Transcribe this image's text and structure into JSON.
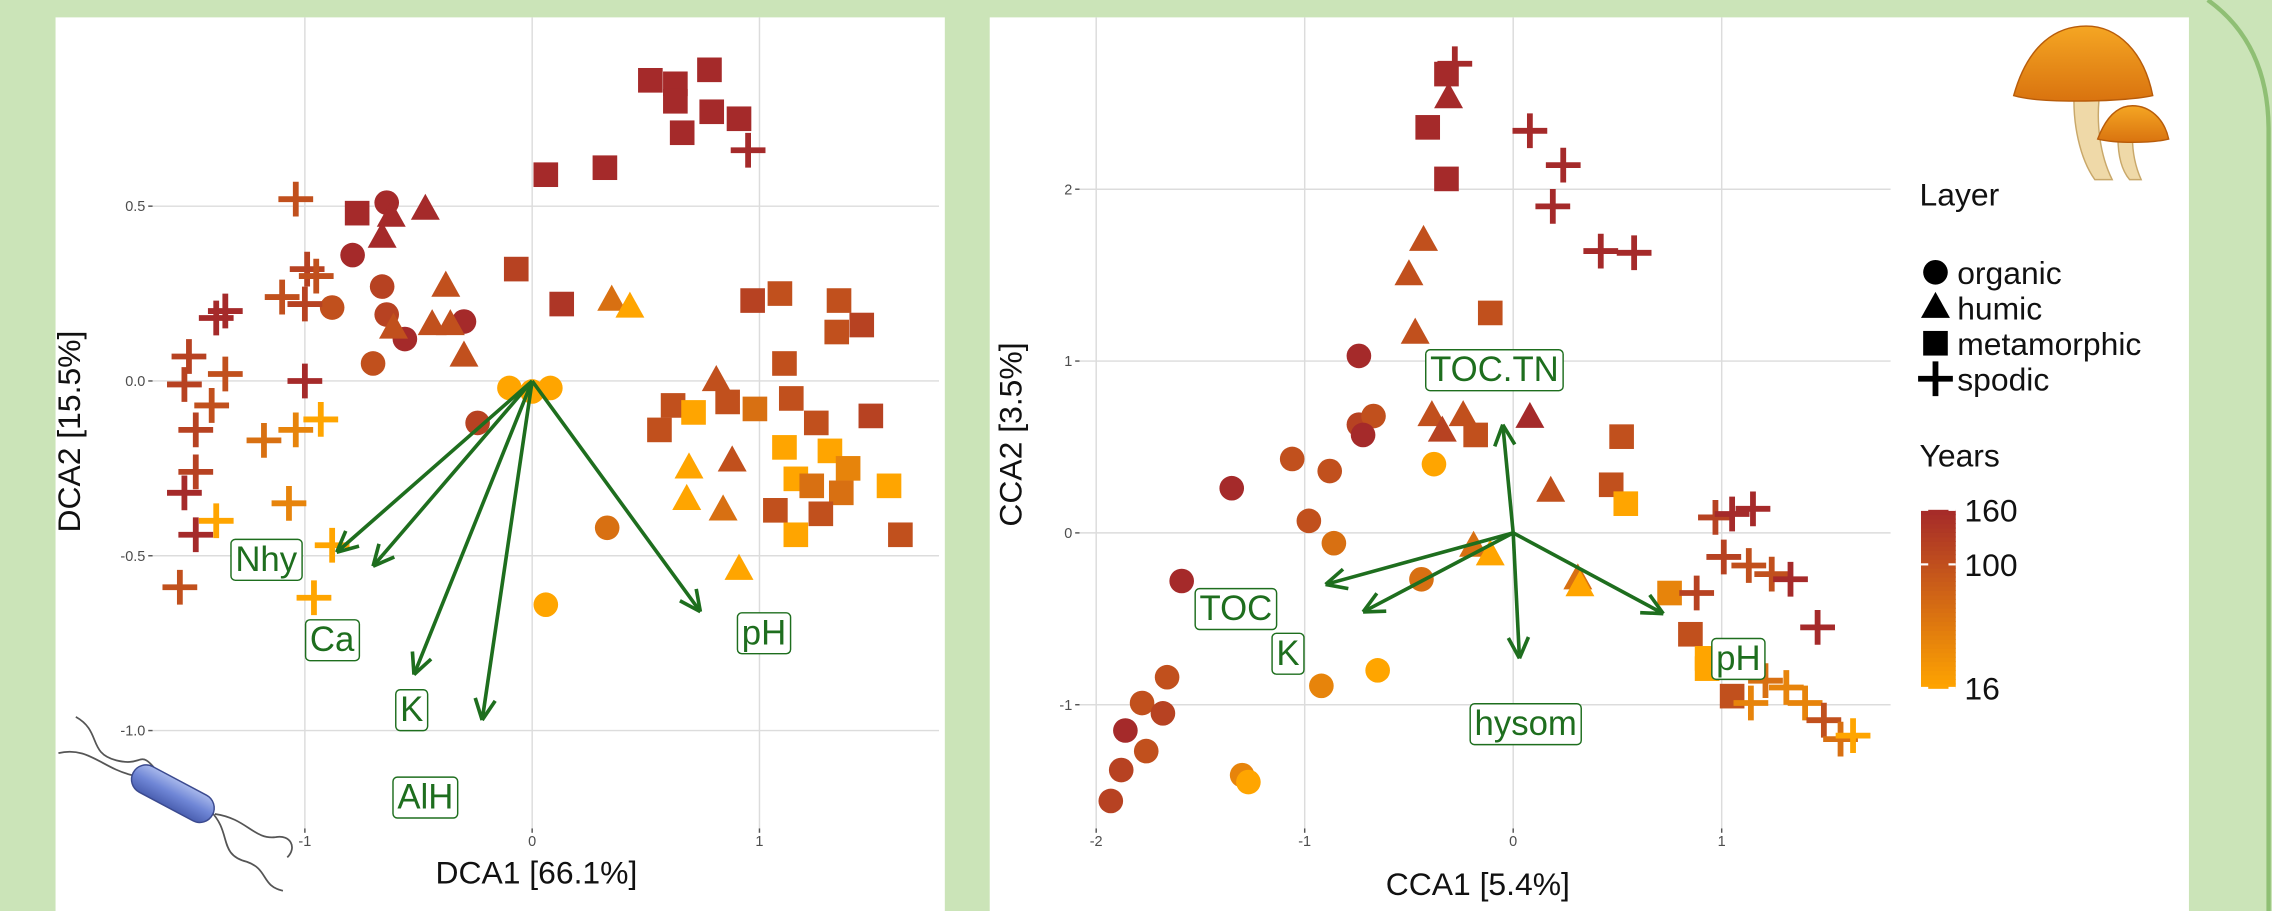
{
  "chart_data": [
    {
      "type": "scatter",
      "xlabel": "DCA1   [66.1%]",
      "ylabel": "DCA2   [15.5%]",
      "xlim": [
        -1.67,
        1.79
      ],
      "ylim": [
        -1.28,
        1.04
      ],
      "xticks": [
        -1,
        0,
        1
      ],
      "yticks": [
        {
          "value": -1,
          "label": "-1.0"
        },
        -0.5,
        {
          "value": 0,
          "label": "0.0"
        },
        0.5
      ],
      "grid": true,
      "arrow_color": "#1e6e1e",
      "series": [
        {
          "name": "organic",
          "shape": "circle",
          "x": [
            -0.64,
            -0.79,
            -0.66,
            -0.64,
            -0.56,
            -0.3,
            -0.7,
            -0.88,
            -0.24,
            -0.1,
            0.0,
            0.08,
            0.33,
            0.06
          ],
          "y": [
            0.51,
            0.36,
            0.27,
            0.19,
            0.12,
            0.17,
            0.05,
            0.21,
            -0.12,
            -0.02,
            -0.03,
            -0.02,
            -0.42,
            -0.64
          ],
          "years": [
            160,
            160,
            120,
            120,
            160,
            160,
            100,
            100,
            120,
            16,
            16,
            16,
            60,
            16
          ]
        },
        {
          "name": "humic",
          "shape": "triangle",
          "x": [
            -0.47,
            -0.62,
            -0.66,
            -0.38,
            -0.44,
            -0.61,
            -0.36,
            -0.3,
            0.35,
            0.43,
            0.81,
            0.69,
            0.68,
            0.84,
            0.91,
            0.88
          ],
          "y": [
            0.49,
            0.47,
            0.41,
            0.27,
            0.16,
            0.15,
            0.16,
            0.07,
            0.23,
            0.21,
            0.0,
            -0.25,
            -0.34,
            -0.37,
            -0.54,
            -0.23
          ],
          "years": [
            160,
            160,
            160,
            100,
            100,
            100,
            100,
            100,
            60,
            16,
            100,
            16,
            16,
            60,
            16,
            100
          ]
        },
        {
          "name": "metamorphic",
          "shape": "square",
          "x": [
            0.52,
            0.63,
            0.78,
            0.63,
            0.79,
            0.91,
            0.66,
            0.06,
            0.32,
            -0.77,
            -0.07,
            0.13,
            0.97,
            1.09,
            1.35,
            1.45,
            1.34,
            1.11,
            0.62,
            0.56,
            0.71,
            0.86,
            0.98,
            1.14,
            1.49,
            1.25,
            1.11,
            1.31,
            1.39,
            1.16,
            1.23,
            1.36,
            1.57,
            1.07,
            1.27,
            1.16,
            1.62
          ],
          "y": [
            0.86,
            0.85,
            0.89,
            0.8,
            0.77,
            0.75,
            0.71,
            0.59,
            0.61,
            0.48,
            0.32,
            0.22,
            0.23,
            0.25,
            0.23,
            0.16,
            0.14,
            0.05,
            -0.07,
            -0.14,
            -0.09,
            -0.06,
            -0.08,
            -0.05,
            -0.1,
            -0.12,
            -0.19,
            -0.2,
            -0.25,
            -0.28,
            -0.3,
            -0.32,
            -0.3,
            -0.37,
            -0.38,
            -0.44,
            -0.44
          ],
          "years": [
            160,
            160,
            160,
            160,
            160,
            160,
            160,
            160,
            160,
            160,
            120,
            140,
            120,
            100,
            100,
            120,
            100,
            100,
            100,
            100,
            16,
            100,
            60,
            100,
            120,
            100,
            16,
            16,
            40,
            16,
            60,
            60,
            16,
            100,
            100,
            16,
            100
          ]
        },
        {
          "name": "spodic",
          "shape": "cross",
          "x": [
            -1.04,
            -0.99,
            -0.95,
            -1.1,
            -1.0,
            -1.35,
            -1.39,
            -1.51,
            -1.35,
            -1.53,
            -1.41,
            -1.48,
            -1.48,
            -1.53,
            -1.48,
            -1.0,
            -1.18,
            -1.04,
            -0.93,
            -1.07,
            -1.39,
            -1.55,
            -0.96,
            -0.88,
            0.95
          ],
          "y": [
            0.52,
            0.32,
            0.3,
            0.24,
            0.22,
            0.2,
            0.18,
            0.07,
            0.02,
            -0.01,
            -0.07,
            -0.14,
            -0.26,
            -0.32,
            -0.44,
            0.0,
            -0.17,
            -0.14,
            -0.11,
            -0.35,
            -0.4,
            -0.59,
            -0.62,
            -0.47,
            0.66
          ],
          "years": [
            100,
            120,
            100,
            100,
            120,
            160,
            160,
            120,
            100,
            120,
            100,
            120,
            120,
            160,
            160,
            160,
            60,
            40,
            16,
            40,
            16,
            100,
            16,
            16,
            160
          ]
        }
      ],
      "arrows": [
        {
          "label": "Nhy",
          "x": -0.86,
          "y": -0.49,
          "label_x": -1.17,
          "label_y": -0.51
        },
        {
          "label": "Ca",
          "x": -0.7,
          "y": -0.53,
          "label_x": -0.88,
          "label_y": -0.74
        },
        {
          "label": "K",
          "x": -0.52,
          "y": -0.84,
          "label_x": -0.53,
          "label_y": -0.94
        },
        {
          "label": "AlH",
          "x": -0.22,
          "y": -0.97,
          "label_x": -0.47,
          "label_y": -1.19
        },
        {
          "label": "pH",
          "x": 0.74,
          "y": -0.66,
          "label_x": 1.02,
          "label_y": -0.72
        }
      ]
    },
    {
      "type": "scatter",
      "xlabel": "CCA1   [5.4%]",
      "ylabel": "CCA2   [3.5%]",
      "xlim": [
        -2.08,
        1.81
      ],
      "ylim": [
        -1.72,
        3.0
      ],
      "xticks": [
        -2,
        -1,
        0,
        1
      ],
      "yticks": [
        -1,
        0,
        1,
        2
      ],
      "grid": true,
      "arrow_color": "#1e6e1e",
      "series": [
        {
          "name": "organic",
          "shape": "circle",
          "x": [
            -0.74,
            -0.74,
            -0.67,
            -0.72,
            -1.06,
            -0.88,
            -1.35,
            -0.98,
            -0.86,
            -1.59,
            -0.38,
            -0.44,
            -1.66,
            -1.78,
            -1.68,
            -1.86,
            -1.76,
            -1.88,
            -1.93,
            -1.3,
            -1.27,
            -0.92,
            -0.65
          ],
          "y": [
            1.03,
            0.63,
            0.68,
            0.57,
            0.43,
            0.36,
            0.26,
            0.07,
            -0.06,
            -0.28,
            0.4,
            -0.27,
            -0.84,
            -0.99,
            -1.05,
            -1.15,
            -1.27,
            -1.38,
            -1.56,
            -1.41,
            -1.45,
            -0.89,
            -0.8
          ],
          "years": [
            160,
            120,
            100,
            160,
            100,
            100,
            160,
            100,
            60,
            160,
            16,
            60,
            100,
            100,
            120,
            160,
            100,
            120,
            120,
            40,
            16,
            40,
            16
          ]
        },
        {
          "name": "humic",
          "shape": "triangle",
          "x": [
            -0.31,
            -0.43,
            -0.5,
            -0.47,
            -0.39,
            -0.34,
            -0.24,
            0.08,
            0.18,
            -0.19,
            -0.11,
            0.31,
            0.32
          ],
          "y": [
            2.53,
            1.7,
            1.5,
            1.16,
            0.68,
            0.59,
            0.68,
            0.67,
            0.24,
            -0.08,
            -0.13,
            -0.27,
            -0.31
          ],
          "years": [
            160,
            100,
            100,
            100,
            100,
            120,
            100,
            160,
            100,
            60,
            16,
            60,
            16
          ]
        },
        {
          "name": "metamorphic",
          "shape": "square",
          "x": [
            -0.32,
            -0.41,
            -0.32,
            -0.11,
            -0.18,
            0.52,
            0.47,
            0.54,
            0.75,
            0.85,
            0.93,
            0.93,
            1.05
          ],
          "y": [
            2.67,
            2.36,
            2.06,
            1.28,
            0.57,
            0.56,
            0.28,
            0.17,
            -0.35,
            -0.59,
            -0.73,
            -0.79,
            -0.95
          ],
          "years": [
            160,
            160,
            160,
            100,
            100,
            100,
            100,
            16,
            40,
            100,
            16,
            16,
            100
          ]
        },
        {
          "name": "spodic",
          "shape": "cross",
          "x": [
            -0.28,
            0.08,
            0.24,
            0.19,
            0.42,
            0.58,
            0.97,
            1.05,
            1.15,
            1.01,
            1.13,
            1.24,
            1.33,
            0.88,
            1.46,
            1.21,
            1.31,
            1.14,
            1.4,
            1.49,
            1.57,
            1.63
          ],
          "y": [
            2.73,
            2.34,
            2.14,
            1.9,
            1.64,
            1.63,
            0.09,
            0.11,
            0.14,
            -0.14,
            -0.19,
            -0.24,
            -0.27,
            -0.35,
            -0.55,
            -0.86,
            -0.9,
            -0.99,
            -0.99,
            -1.09,
            -1.2,
            -1.18
          ],
          "years": [
            160,
            160,
            160,
            160,
            160,
            160,
            120,
            160,
            160,
            120,
            100,
            100,
            160,
            120,
            160,
            60,
            40,
            40,
            40,
            100,
            60,
            16
          ]
        }
      ],
      "arrows": [
        {
          "label": "TOC.TN",
          "x": -0.05,
          "y": 0.63,
          "label_x": -0.09,
          "label_y": 0.95
        },
        {
          "label": "TOC",
          "x": -0.9,
          "y": -0.3,
          "label_x": -1.33,
          "label_y": -0.44
        },
        {
          "label": "K",
          "x": -0.72,
          "y": -0.46,
          "label_x": -1.08,
          "label_y": -0.7
        },
        {
          "label": "hysom",
          "x": 0.03,
          "y": -0.73,
          "label_x": 0.06,
          "label_y": -1.11
        },
        {
          "label": "pH",
          "x": 0.72,
          "y": -0.47,
          "label_x": 1.08,
          "label_y": -0.73
        }
      ],
      "legend": {
        "title": "Layer"
      },
      "colorbar": {
        "title": "Years",
        "lim": [
          16,
          160
        ],
        "ticks": [
          160,
          100,
          16
        ],
        "scale": "sqrt",
        "low_color": "#ffa500",
        "high_color": "#a52a2a"
      }
    }
  ]
}
